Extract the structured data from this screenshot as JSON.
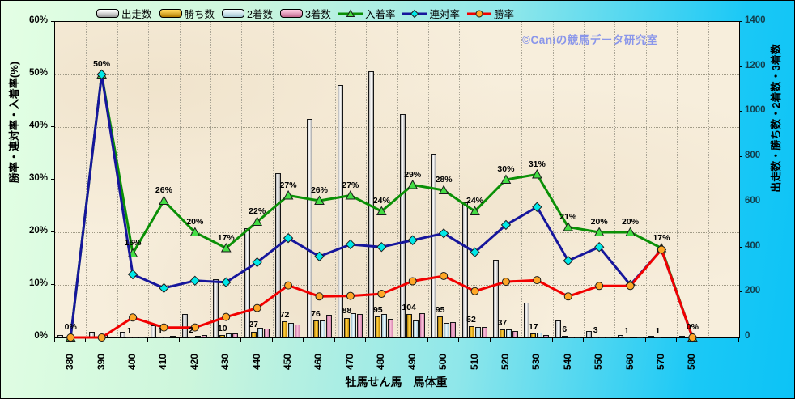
{
  "watermark": "©Caniの競馬データ研究室",
  "chart_data": {
    "type": "bar+line combo",
    "x_title": "牡馬せん馬　馬体重",
    "categories": [
      "380",
      "390",
      "400",
      "410",
      "420",
      "430",
      "440",
      "450",
      "460",
      "470",
      "480",
      "490",
      "500",
      "510",
      "520",
      "530",
      "540",
      "550",
      "560",
      "570",
      "580"
    ],
    "y_left": {
      "title": "勝率・連対率・入着率(%)",
      "min": 0,
      "max": 60,
      "ticks": [
        "0%",
        "10%",
        "20%",
        "30%",
        "40%",
        "50%",
        "60%"
      ],
      "grid": "dotted"
    },
    "y_right": {
      "title": "出走数・勝ち数・2着数・3着数",
      "min": 0,
      "max": 1400,
      "ticks": [
        "0",
        "200",
        "400",
        "600",
        "800",
        "1000",
        "1200",
        "1400"
      ]
    },
    "bar_series": [
      {
        "name": "出走数",
        "key": "starts",
        "color": "#ffffff",
        "values": [
          10,
          24,
          25,
          54,
          105,
          258,
          485,
          730,
          970,
          1120,
          1180,
          990,
          814,
          600,
          345,
          155,
          75,
          30,
          10,
          6,
          7
        ]
      },
      {
        "name": "勝ち数",
        "key": "wins",
        "color": "#ffb400",
        "values": [
          0,
          0,
          1,
          1,
          2,
          10,
          27,
          72,
          76,
          88,
          95,
          104,
          95,
          52,
          37,
          17,
          6,
          3,
          1,
          1,
          0
        ],
        "labels": [
          "",
          "",
          "1",
          "1",
          "2",
          "10",
          "27",
          "72",
          "76",
          "88",
          "95",
          "104",
          "95",
          "52",
          "37",
          "17",
          "6",
          "3",
          "1",
          "1",
          ""
        ]
      },
      {
        "name": "2着数",
        "key": "second",
        "color": "#d8ecf4",
        "values": [
          0,
          12,
          2,
          4,
          9,
          17,
          42,
          66,
          74,
          108,
          106,
          74,
          65,
          46,
          37,
          21,
          5,
          2,
          0,
          0,
          0
        ]
      },
      {
        "name": "3着数",
        "key": "third",
        "color": "#f4a6c8",
        "values": [
          0,
          0,
          1,
          9,
          10,
          17,
          38,
          59,
          102,
          106,
          82,
          109,
          68,
          46,
          30,
          10,
          5,
          1,
          1,
          0,
          0
        ]
      }
    ],
    "line_series": [
      {
        "name": "入着率",
        "key": "place-rate",
        "color": "#0a9006",
        "marker": "triangle",
        "marker_color": "#44dd44",
        "values": [
          0,
          50,
          16,
          26,
          20,
          17,
          22,
          27,
          26,
          27,
          24,
          29,
          28,
          24,
          30,
          31,
          21,
          20,
          20,
          17,
          0
        ],
        "labels": [
          "0%",
          "50%",
          "16%",
          "26%",
          "20%",
          "17%",
          "22%",
          "27%",
          "26%",
          "27%",
          "24%",
          "29%",
          "28%",
          "24%",
          "30%",
          "31%",
          "21%",
          "20%",
          "20%",
          "17%",
          "0%"
        ]
      },
      {
        "name": "連対率",
        "key": "quinella-rate",
        "color": "#16169c",
        "marker": "diamond",
        "marker_color": "#00e8e8",
        "values": [
          0,
          50,
          12,
          9.4,
          10.8,
          10.5,
          14.3,
          18.9,
          15.4,
          17.7,
          17.2,
          18.5,
          19.8,
          16.2,
          21.4,
          24.8,
          14.6,
          17.2,
          10,
          16.7,
          0
        ]
      },
      {
        "name": "勝率",
        "key": "win-rate",
        "color": "#f20000",
        "marker": "circle",
        "marker_color": "#ffa726",
        "values": [
          0,
          0,
          3.8,
          1.9,
          1.9,
          3.9,
          5.6,
          9.9,
          7.8,
          7.9,
          8.3,
          10.7,
          11.7,
          8.8,
          10.6,
          10.9,
          7.8,
          9.8,
          9.8,
          16.7,
          0
        ]
      }
    ]
  }
}
